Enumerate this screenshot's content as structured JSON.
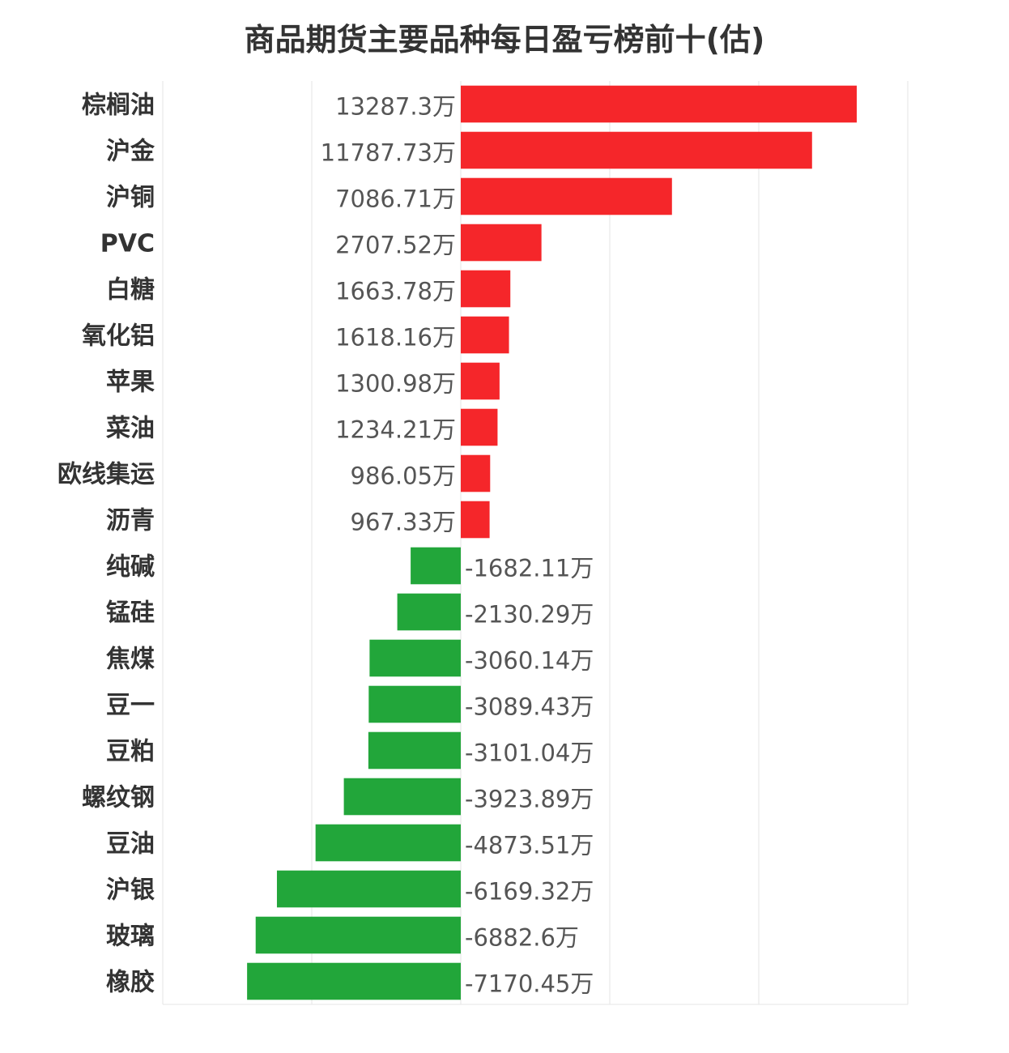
{
  "chart_data": {
    "type": "bar",
    "orientation": "horizontal",
    "title": "商品期货主要品种每日盈亏榜前十(估)",
    "xlabel": "",
    "ylabel": "",
    "unit_suffix": "万",
    "grid": true,
    "legend": "none",
    "xlim": [
      -10000,
      15000
    ],
    "categories": [
      "棕榈油",
      "沪金",
      "沪铜",
      "PVC",
      "白糖",
      "氧化铝",
      "苹果",
      "菜油",
      "欧线集运",
      "沥青",
      "纯碱",
      "锰硅",
      "焦煤",
      "豆一",
      "豆粕",
      "螺纹钢",
      "豆油",
      "沪银",
      "玻璃",
      "橡胶"
    ],
    "values": [
      13287.3,
      11787.73,
      7086.71,
      2707.52,
      1663.78,
      1618.16,
      1300.98,
      1234.21,
      986.05,
      967.33,
      -1682.11,
      -2130.29,
      -3060.14,
      -3089.43,
      -3101.04,
      -3923.89,
      -4873.51,
      -6169.32,
      -6882.6,
      -7170.45
    ],
    "value_labels": [
      "13287.3万",
      "11787.73万",
      "7086.71万",
      "2707.52万",
      "1663.78万",
      "1618.16万",
      "1300.98万",
      "1234.21万",
      "986.05万",
      "967.33万",
      "-1682.11万",
      "-2130.29万",
      "-3060.14万",
      "-3089.43万",
      "-3101.04万",
      "-3923.89万",
      "-4873.51万",
      "-6169.32万",
      "-6882.6万",
      "-7170.45万"
    ],
    "colors": {
      "positive": "#f5262a",
      "negative": "#22a63a",
      "grid": "#e6e6e6"
    }
  }
}
